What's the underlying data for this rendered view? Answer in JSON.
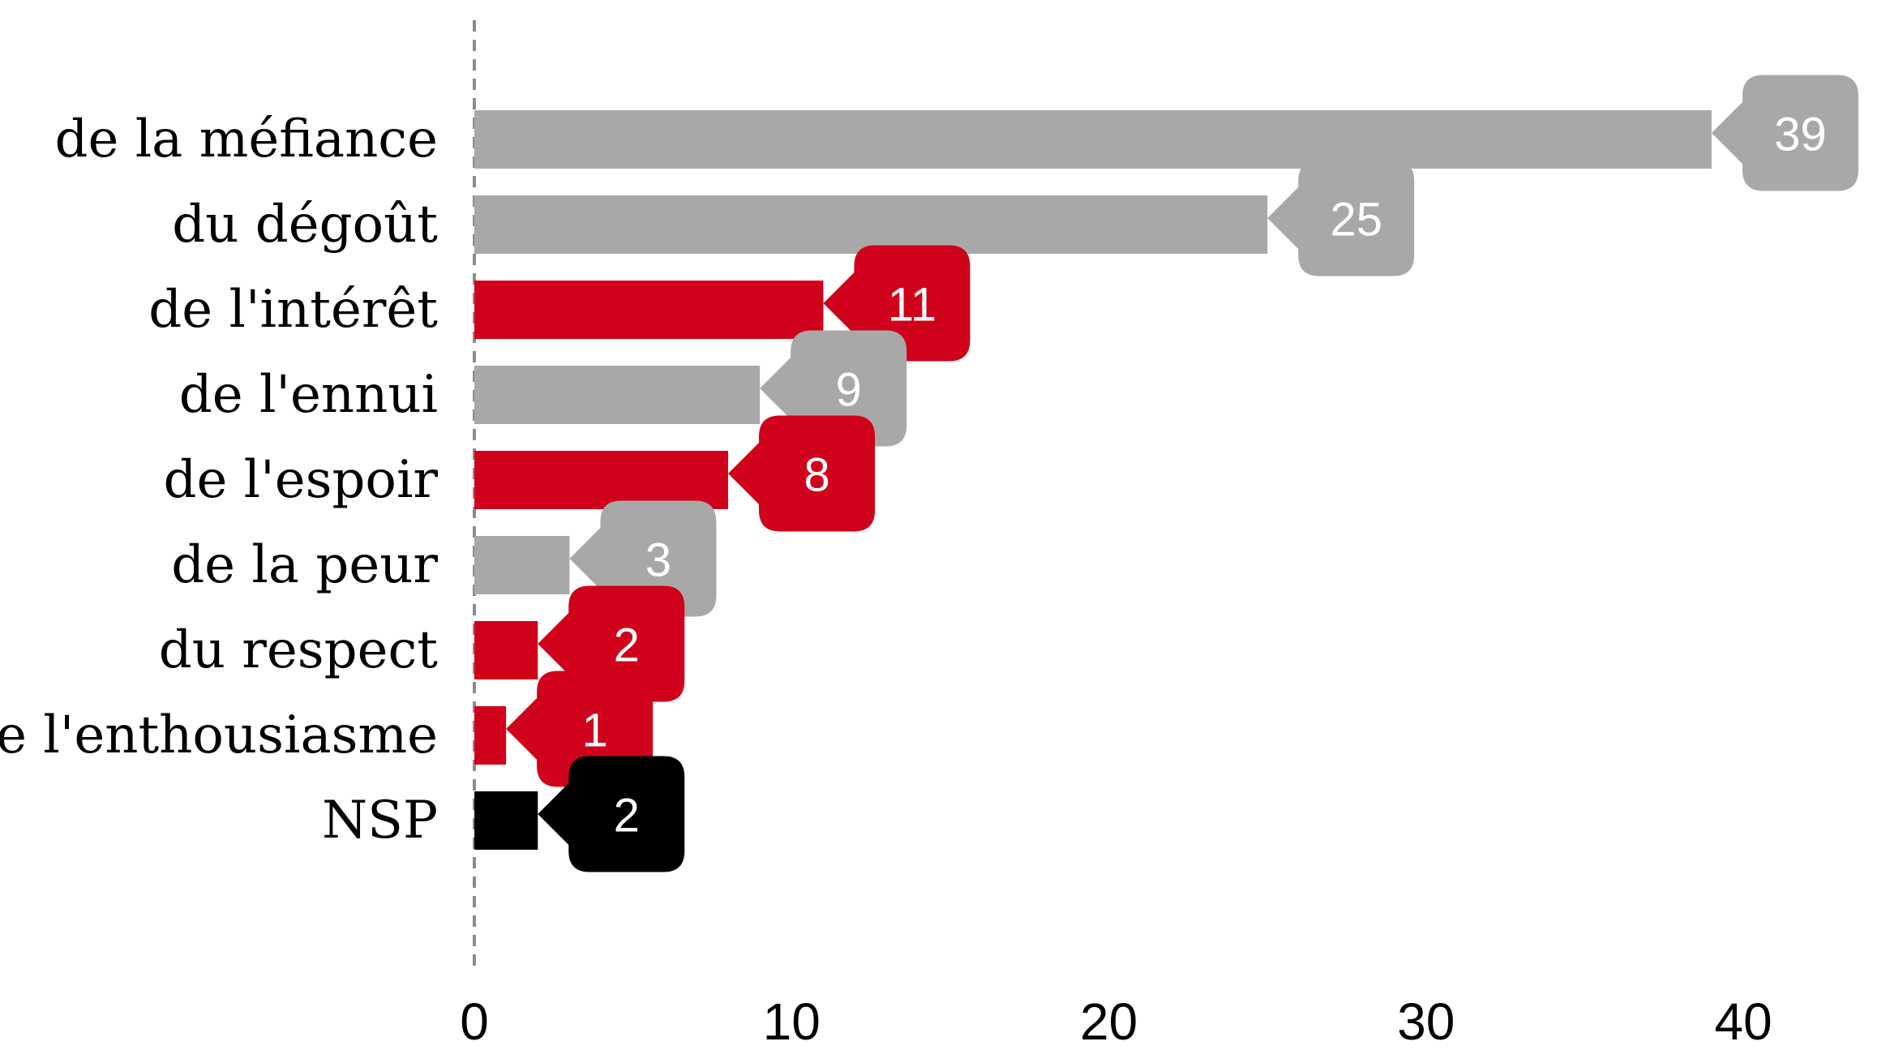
{
  "chart_data": {
    "type": "bar",
    "orientation": "horizontal",
    "categories": [
      "de la méfiance",
      "du dégoût",
      "de l'intérêt",
      "de l'ennui",
      "de l'espoir",
      "de la peur",
      "du respect",
      "de l'enthousiasme",
      "NSP"
    ],
    "values": [
      39,
      25,
      11,
      9,
      8,
      3,
      2,
      1,
      2
    ],
    "bar_colors": [
      "#a9a8a9",
      "#a9a8a9",
      "#d0021b",
      "#a9a8a9",
      "#d0021b",
      "#a9a8a9",
      "#d0021b",
      "#d0021b",
      "#000000"
    ],
    "xlim": [
      0,
      40
    ],
    "x_ticks": [
      0,
      10,
      20,
      30,
      40
    ],
    "x_tick_labels": [
      "0",
      "10",
      "20",
      "30",
      "40"
    ],
    "zero_line": "dashed",
    "grid": false,
    "legend": "none",
    "data_labels": "callout-right"
  }
}
